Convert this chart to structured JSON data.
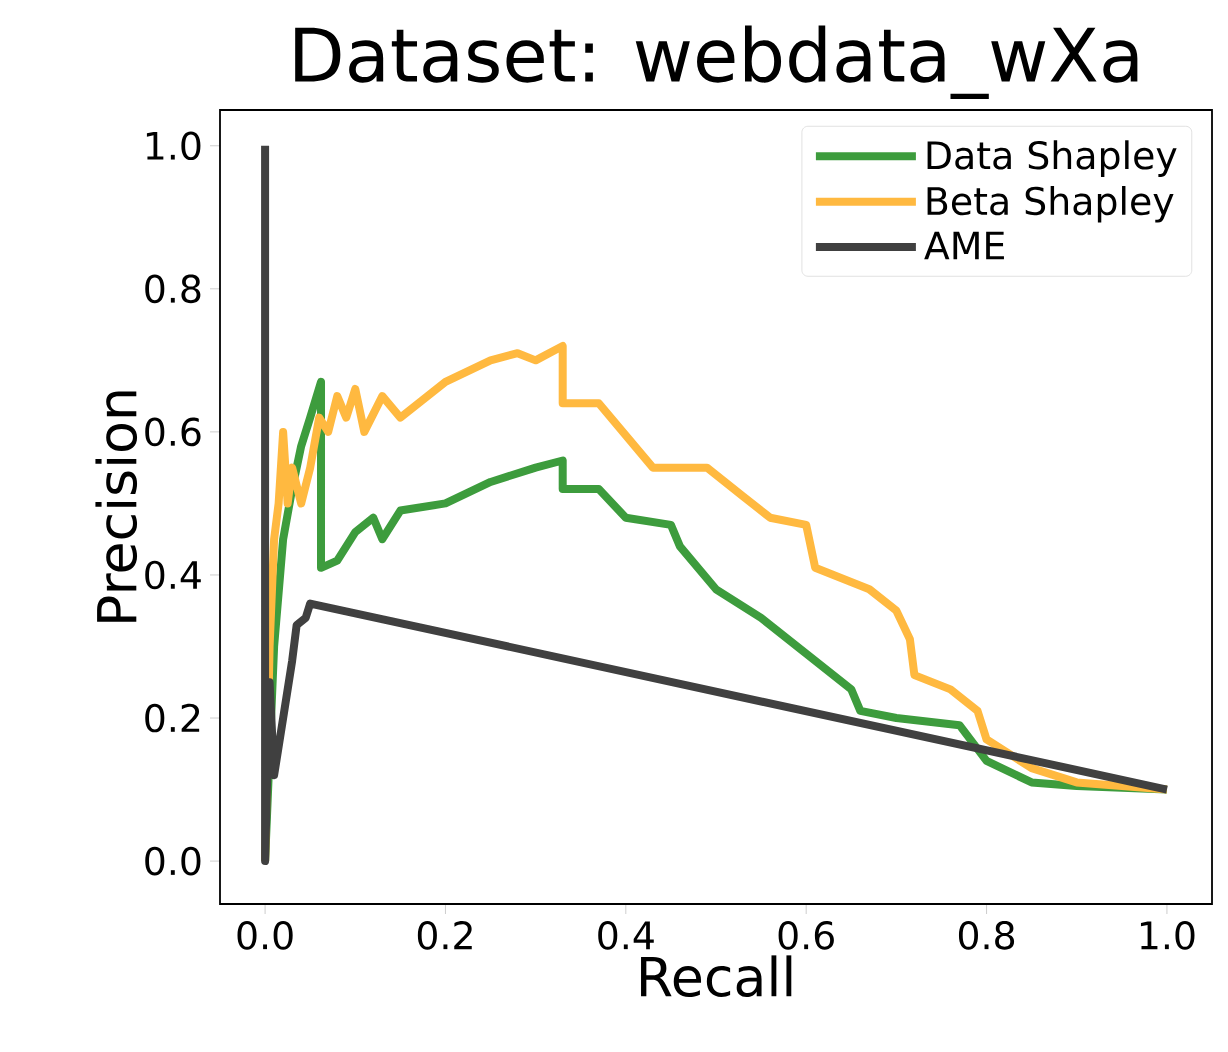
{
  "chart_data": {
    "type": "line",
    "title": "Dataset: webdata_wXa",
    "xlabel": "Recall",
    "ylabel": "Precision",
    "xlim": [
      -0.05,
      1.05
    ],
    "ylim": [
      -0.06,
      1.05
    ],
    "xticks": [
      {
        "value": 0,
        "label": "0.0"
      },
      {
        "value": 0.2,
        "label": "0.2"
      },
      {
        "value": 0.4,
        "label": "0.4"
      },
      {
        "value": 0.6,
        "label": "0.6"
      },
      {
        "value": 0.8,
        "label": "0.8"
      },
      {
        "value": 1,
        "label": "1.0"
      }
    ],
    "yticks": [
      {
        "value": 0,
        "label": "0.0"
      },
      {
        "value": 0.2,
        "label": "0.2"
      },
      {
        "value": 0.4,
        "label": "0.4"
      },
      {
        "value": 0.6,
        "label": "0.6"
      },
      {
        "value": 0.8,
        "label": "0.8"
      },
      {
        "value": 1,
        "label": "1.0"
      }
    ],
    "grid": false,
    "legend": "top right",
    "marker": "none",
    "line_style": "solid",
    "series": [
      {
        "name": "Data Shapley",
        "color": "#3d9c3d",
        "x": [
          0,
          0.01,
          0.02,
          0.03,
          0.04,
          0.05,
          0.062,
          0.062,
          0.08,
          0.1,
          0.12,
          0.13,
          0.15,
          0.2,
          0.25,
          0.3,
          0.33,
          0.33,
          0.37,
          0.4,
          0.45,
          0.46,
          0.5,
          0.55,
          0.6,
          0.65,
          0.66,
          0.7,
          0.77,
          0.8,
          0.85,
          0.9,
          1.0
        ],
        "values": [
          0,
          0.3,
          0.45,
          0.52,
          0.58,
          0.62,
          0.67,
          0.41,
          0.42,
          0.46,
          0.48,
          0.45,
          0.49,
          0.5,
          0.53,
          0.55,
          0.56,
          0.52,
          0.52,
          0.48,
          0.47,
          0.44,
          0.38,
          0.34,
          0.29,
          0.24,
          0.21,
          0.2,
          0.19,
          0.14,
          0.11,
          0.105,
          0.1
        ]
      },
      {
        "name": "Beta Shapley",
        "color": "#ffb940",
        "x": [
          0,
          0.005,
          0.01,
          0.015,
          0.02,
          0.025,
          0.03,
          0.04,
          0.05,
          0.06,
          0.07,
          0.08,
          0.09,
          0.1,
          0.11,
          0.13,
          0.15,
          0.2,
          0.25,
          0.28,
          0.3,
          0.33,
          0.33,
          0.37,
          0.43,
          0.49,
          0.53,
          0.56,
          0.6,
          0.61,
          0.67,
          0.7,
          0.715,
          0.72,
          0.76,
          0.79,
          0.8,
          0.85,
          0.9,
          1.0
        ],
        "values": [
          0,
          0.3,
          0.45,
          0.5,
          0.6,
          0.5,
          0.55,
          0.5,
          0.55,
          0.62,
          0.6,
          0.65,
          0.62,
          0.66,
          0.6,
          0.65,
          0.62,
          0.67,
          0.7,
          0.71,
          0.7,
          0.72,
          0.64,
          0.64,
          0.55,
          0.55,
          0.51,
          0.48,
          0.47,
          0.41,
          0.38,
          0.35,
          0.31,
          0.26,
          0.24,
          0.21,
          0.17,
          0.13,
          0.11,
          0.1
        ]
      },
      {
        "name": "AME",
        "color": "#404040",
        "x": [
          0,
          0,
          0.005,
          0.01,
          0.02,
          0.03,
          0.035,
          0.045,
          0.05,
          1.0
        ],
        "values": [
          1,
          0,
          0.25,
          0.12,
          0.2,
          0.28,
          0.33,
          0.34,
          0.36,
          0.1
        ]
      }
    ]
  }
}
